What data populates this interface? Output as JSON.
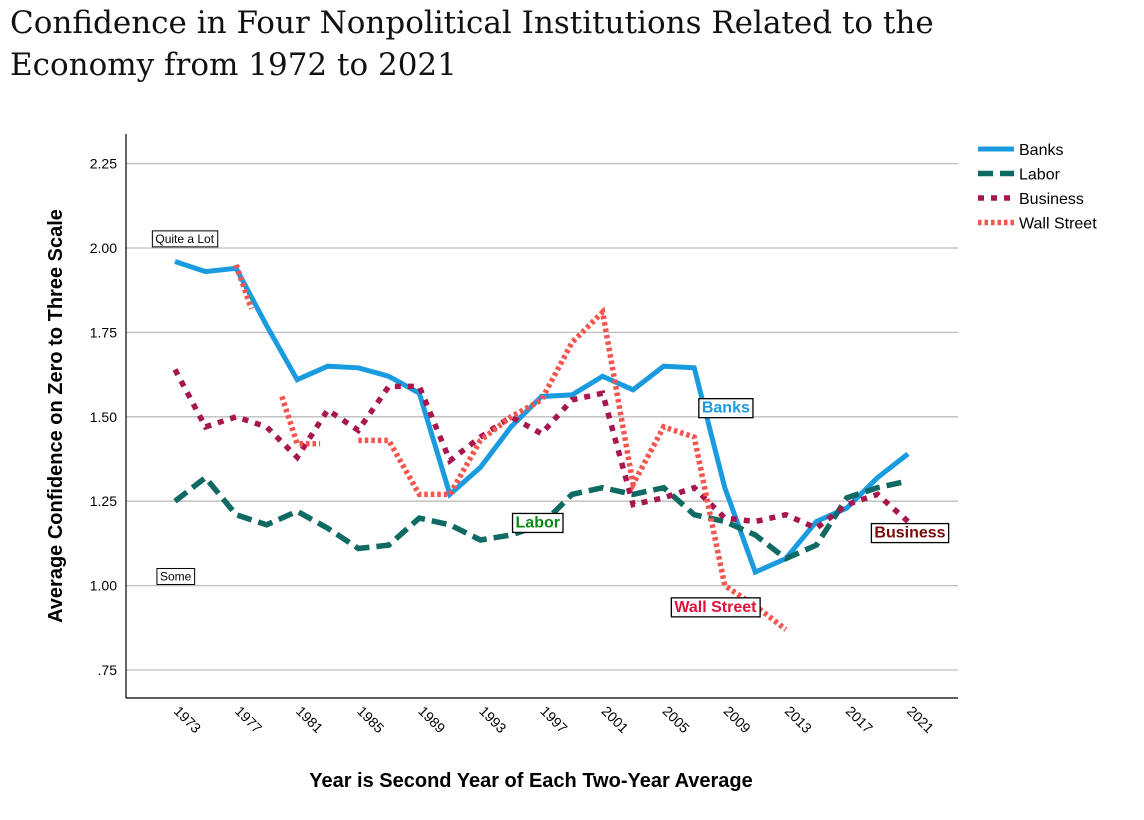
{
  "chart_data": {
    "type": "line",
    "title": "Confidence in Four Nonpolitical Institutions Related to the Economy from 1972 to 2021",
    "xlabel": "Year is Second Year of Each Two-Year Average",
    "ylabel": "Average Confidence on Zero to Three Scale",
    "ylim": [
      0.62,
      2.34
    ],
    "xlim": [
      1969.8,
      2023.5
    ],
    "yticks": [
      0.75,
      1.0,
      1.25,
      1.5,
      1.75,
      2.0,
      2.25
    ],
    "ytick_labels": [
      ".75",
      "1.00",
      "1.25",
      "1.50",
      "1.75",
      "2.00",
      "2.25"
    ],
    "xticks": [
      "1973",
      "1977",
      "1981",
      "1985",
      "1989",
      "1993",
      "1997",
      "2001",
      "2005",
      "2009",
      "2013",
      "2017",
      "2021"
    ],
    "grid": "horizontal",
    "legend_position": "right",
    "annotations": [
      {
        "text": "Quite a Lot",
        "x": 1972.5,
        "y": 2.03
      },
      {
        "text": "Some",
        "x": 1972.8,
        "y": 1.03
      }
    ],
    "series": [
      {
        "name": "Banks",
        "color": "#1a9be0",
        "style": "solid",
        "label": "Banks",
        "label_color": "#1a9be0",
        "label_at": [
          2007.5,
          1.53
        ],
        "segments": [
          [
            [
              1973,
              1.96
            ],
            [
              1975,
              1.93
            ],
            [
              1977,
              1.94
            ],
            [
              1979,
              1.77
            ],
            [
              1981,
              1.61
            ],
            [
              1983,
              1.65
            ],
            [
              1985,
              1.645
            ],
            [
              1987,
              1.62
            ],
            [
              1989,
              1.57
            ],
            [
              1991,
              1.27
            ],
            [
              1993,
              1.35
            ],
            [
              1995,
              1.47
            ],
            [
              1997,
              1.56
            ],
            [
              1999,
              1.565
            ],
            [
              2001,
              1.62
            ],
            [
              2003,
              1.58
            ],
            [
              2005,
              1.65
            ],
            [
              2007,
              1.645
            ],
            [
              2009,
              1.29
            ],
            [
              2011,
              1.04
            ],
            [
              2013,
              1.08
            ],
            [
              2015,
              1.19
            ],
            [
              2017,
              1.23
            ],
            [
              2019,
              1.32
            ],
            [
              2021,
              1.39
            ]
          ]
        ]
      },
      {
        "name": "Labor",
        "color": "#0e6a62",
        "style": "dashed",
        "label": "Labor",
        "label_color": "#0a8a16",
        "label_at": [
          1995.3,
          1.19
        ],
        "segments": [
          [
            [
              1973,
              1.25
            ],
            [
              1975,
              1.32
            ],
            [
              1977,
              1.21
            ],
            [
              1979,
              1.18
            ],
            [
              1981,
              1.22
            ],
            [
              1983,
              1.17
            ],
            [
              1985,
              1.11
            ],
            [
              1987,
              1.12
            ],
            [
              1989,
              1.2
            ],
            [
              1991,
              1.18
            ],
            [
              1993,
              1.135
            ],
            [
              1995,
              1.15
            ],
            [
              1997,
              1.18
            ],
            [
              1999,
              1.27
            ],
            [
              2001,
              1.29
            ],
            [
              2003,
              1.27
            ],
            [
              2005,
              1.29
            ],
            [
              2007,
              1.21
            ],
            [
              2009,
              1.19
            ],
            [
              2011,
              1.15
            ],
            [
              2013,
              1.08
            ],
            [
              2015,
              1.12
            ],
            [
              2017,
              1.26
            ],
            [
              2019,
              1.29
            ],
            [
              2021,
              1.31
            ]
          ]
        ]
      },
      {
        "name": "Business",
        "color": "#a8164f",
        "style": "dotted",
        "label": "Business",
        "label_color": "#7a0a0a",
        "label_at": [
          2018.8,
          1.16
        ],
        "segments": [
          [
            [
              1973,
              1.64
            ],
            [
              1975,
              1.47
            ],
            [
              1977,
              1.5
            ],
            [
              1979,
              1.47
            ],
            [
              1981,
              1.38
            ],
            [
              1983,
              1.52
            ],
            [
              1985,
              1.46
            ],
            [
              1987,
              1.59
            ],
            [
              1989,
              1.59
            ],
            [
              1991,
              1.37
            ],
            [
              1993,
              1.44
            ],
            [
              1995,
              1.5
            ],
            [
              1997,
              1.45
            ],
            [
              1999,
              1.55
            ],
            [
              2001,
              1.57
            ],
            [
              2003,
              1.24
            ],
            [
              2005,
              1.26
            ],
            [
              2007,
              1.29
            ],
            [
              2009,
              1.2
            ],
            [
              2011,
              1.19
            ],
            [
              2013,
              1.21
            ],
            [
              2015,
              1.17
            ],
            [
              2017,
              1.24
            ],
            [
              2019,
              1.27
            ],
            [
              2021,
              1.19
            ]
          ]
        ]
      },
      {
        "name": "Wall Street",
        "color": "#f4554f",
        "style": "dotted-fine",
        "label": "Wall Street",
        "label_color": "#e0103a",
        "label_at": [
          2005.7,
          0.94
        ],
        "segments": [
          [
            [
              1977,
              1.95
            ],
            [
              1978,
              1.82
            ]
          ],
          [
            [
              1980,
              1.56
            ],
            [
              1981,
              1.42
            ],
            [
              1982.5,
              1.42
            ]
          ],
          [
            [
              1985,
              1.43
            ],
            [
              1987,
              1.43
            ],
            [
              1989,
              1.27
            ],
            [
              1991,
              1.27
            ],
            [
              1993,
              1.43
            ],
            [
              1995,
              1.5
            ],
            [
              1997,
              1.55
            ],
            [
              1999,
              1.72
            ],
            [
              2001,
              1.81
            ],
            [
              2003,
              1.3
            ],
            [
              2005,
              1.47
            ],
            [
              2007,
              1.44
            ],
            [
              2009,
              1.0
            ],
            [
              2011,
              0.94
            ],
            [
              2013,
              0.87
            ]
          ]
        ]
      }
    ]
  }
}
